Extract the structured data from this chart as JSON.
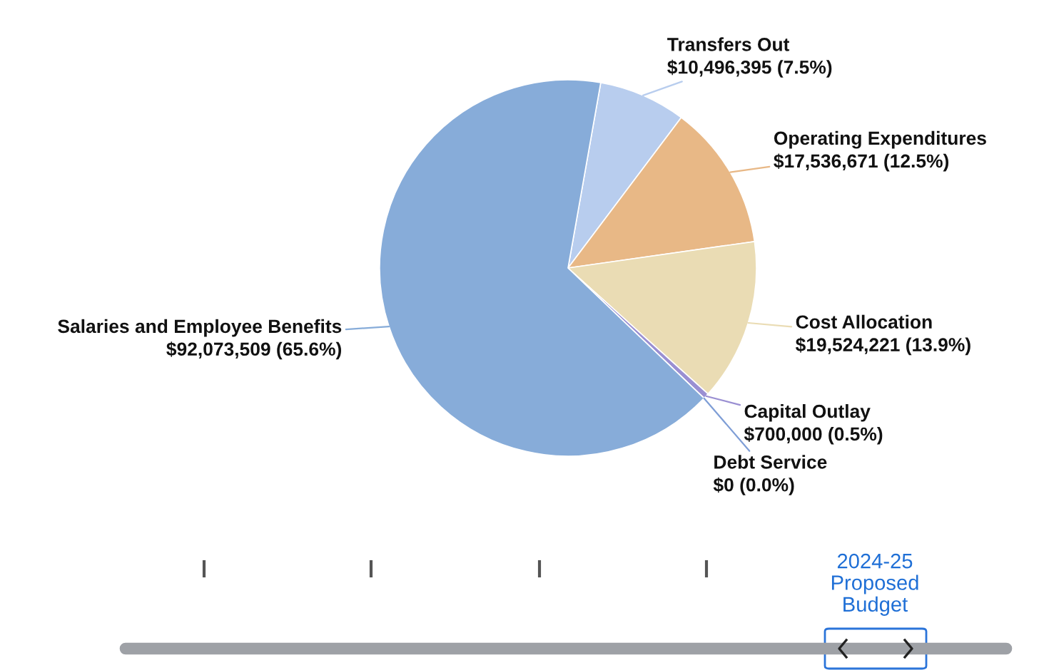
{
  "chart_data": {
    "type": "pie",
    "categories": [
      "Transfers Out",
      "Operating Expenditures",
      "Cost Allocation",
      "Capital Outlay",
      "Debt Service",
      "Salaries and Employee Benefits"
    ],
    "values": [
      10496395,
      17536671,
      19524221,
      700000,
      0,
      92073509
    ],
    "value_labels": [
      "$10,496,395 (7.5%)",
      "$17,536,671 (12.5%)",
      "$19,524,221 (13.9%)",
      "$700,000 (0.5%)",
      "$0 (0.0%)",
      "$92,073,509 (65.6%)"
    ],
    "colors": [
      "#b8cdee",
      "#e8b886",
      "#eadcb4",
      "#9a8fd2",
      "#7f9ed6",
      "#87acd9"
    ],
    "annotations": [
      "2024-25\nProposed\nBudget"
    ],
    "legend": false
  }
}
